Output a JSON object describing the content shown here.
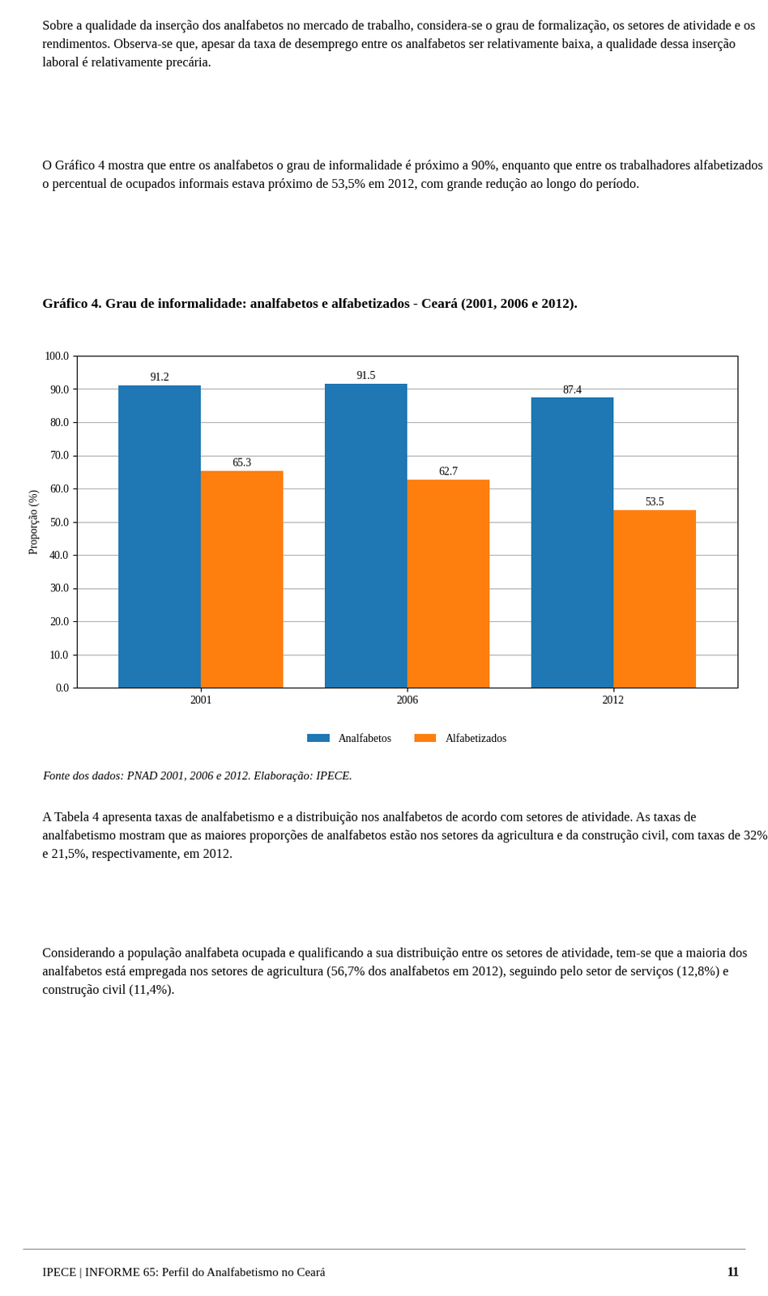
{
  "chart_data": {
    "type": "bar",
    "title": "Gráfico 4. Grau de informalidade: analfabetos e alfabetizados - Ceará (2001, 2006 e 2012).",
    "y_label": "Proporção (%)",
    "categories": [
      "2001",
      "2006",
      "2012"
    ],
    "series": [
      {
        "name": "Analfabetos",
        "values": [
          91.2,
          91.5,
          87.4
        ]
      },
      {
        "name": "Alfabetizados",
        "values": [
          65.3,
          62.7,
          53.5
        ]
      }
    ],
    "ylim": [
      0,
      100
    ],
    "yticks": [
      {
        "value": 0,
        "label": "0.0"
      },
      {
        "value": 10,
        "label": "10.0"
      },
      {
        "value": 20,
        "label": "20.0"
      },
      {
        "value": 30,
        "label": "30.0"
      },
      {
        "value": 40,
        "label": "40.0"
      },
      {
        "value": 50,
        "label": "50.0"
      },
      {
        "value": 60,
        "label": "60.0"
      },
      {
        "value": 70,
        "label": "70.0"
      },
      {
        "value": 80,
        "label": "80.0"
      },
      {
        "value": 90,
        "label": "90.0"
      },
      {
        "value": 100,
        "label": "100.0"
      }
    ],
    "grid": true,
    "legend": "lower center",
    "data_labels": true,
    "annotations": [
      "Sobre a qualidade da inserção dos analfabetos no mercado de trabalho, considera-se o grau de formalização, os setores de atividade e os rendimentos. Observa-se que, apesar da taxa de desemprego entre os analfabetos ser relativamente baixa, a qualidade dessa inserção laboral é relativamente precária.",
      "O Gráfico 4 mostra que entre os analfabetos o grau de informalidade é próximo a 90%, enquanto que entre os trabalhadores alfabetizados o percentual de ocupados informais estava próximo de 53,5% em 2012, com grande redução ao longo do período.",
      "Fonte dos dados: PNAD 2001, 2006 e 2012. Elaboração: IPECE.",
      "A Tabela 4 apresenta taxas de analfabetismo e a distribuição nos analfabetos de acordo com setores de atividade. As taxas de analfabetismo mostram que as maiores proporções de analfabetos estão nos setores da agricultura e da construção civil, com taxas de 32% e 21,5%, respectivamente, em 2012.",
      "Considerando a população analfabeta ocupada e qualificando a sua distribuição entre os setores de atividade, tem-se que a maioria dos analfabetos está empregada nos setores de agricultura (56,7% dos analfabetos em 2012), seguindo pelo setor de serviços (12,8%) e construção civil (11,4%).",
      "IPECE | INFORME 65: Perfil do Analfabetismo no Ceará",
      "11"
    ]
  }
}
